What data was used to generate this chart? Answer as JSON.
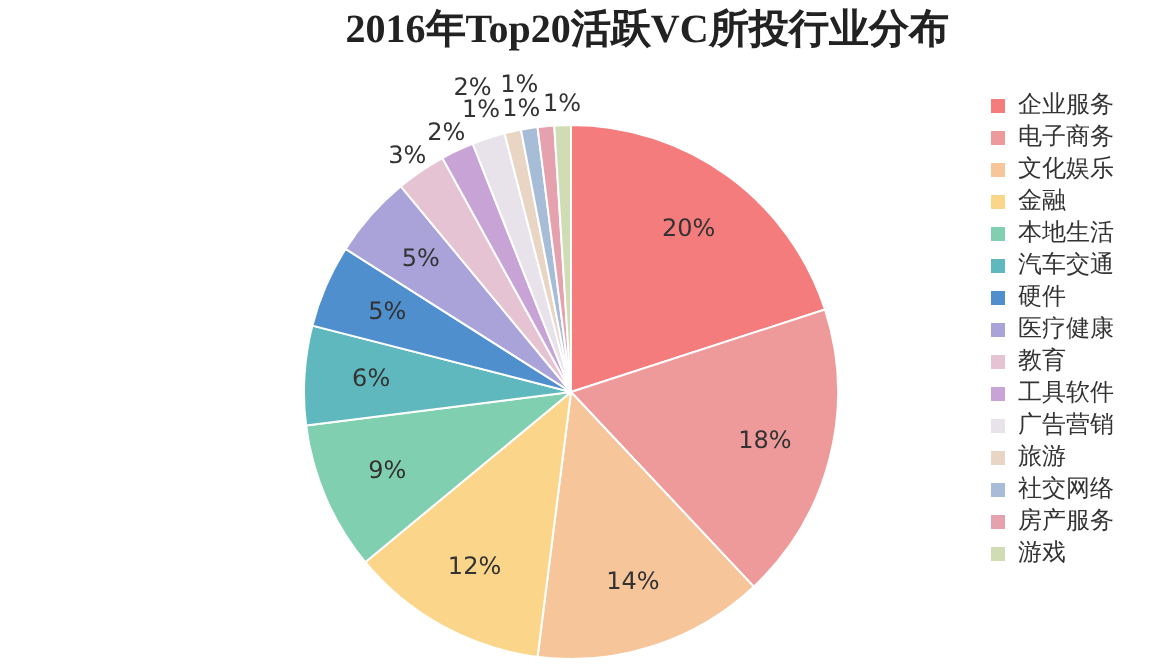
{
  "chart_data": {
    "type": "pie",
    "title": "2016年Top20活跃VC所投行业分布",
    "categories": [
      "企业服务",
      "电子商务",
      "文化娱乐",
      "金融",
      "本地生活",
      "汽车交通",
      "硬件",
      "医疗健康",
      "教育",
      "工具软件",
      "广告营销",
      "旅游",
      "社交网络",
      "房产服务",
      "游戏"
    ],
    "values": [
      20,
      18,
      14,
      12,
      9,
      6,
      5,
      5,
      3,
      2,
      2,
      1,
      1,
      1,
      1
    ],
    "colors": [
      "#f47c7c",
      "#ef9a9a",
      "#f6c59a",
      "#fbd68a",
      "#7fcfb0",
      "#5fb8be",
      "#4f8fce",
      "#a9a3d9",
      "#e5c3d3",
      "#c7a3d6",
      "#e8e3ea",
      "#e8d5c3",
      "#a7bcd6",
      "#e6a1ae",
      "#cfdcb4"
    ],
    "value_labels": [
      "20%",
      "18%",
      "14%",
      "12%",
      "9%",
      "6%",
      "5%",
      "5%",
      "3%",
      "2%",
      "2%",
      "1%",
      "1%",
      "1%",
      "1%"
    ],
    "data_labels": true,
    "legend": "right"
  }
}
